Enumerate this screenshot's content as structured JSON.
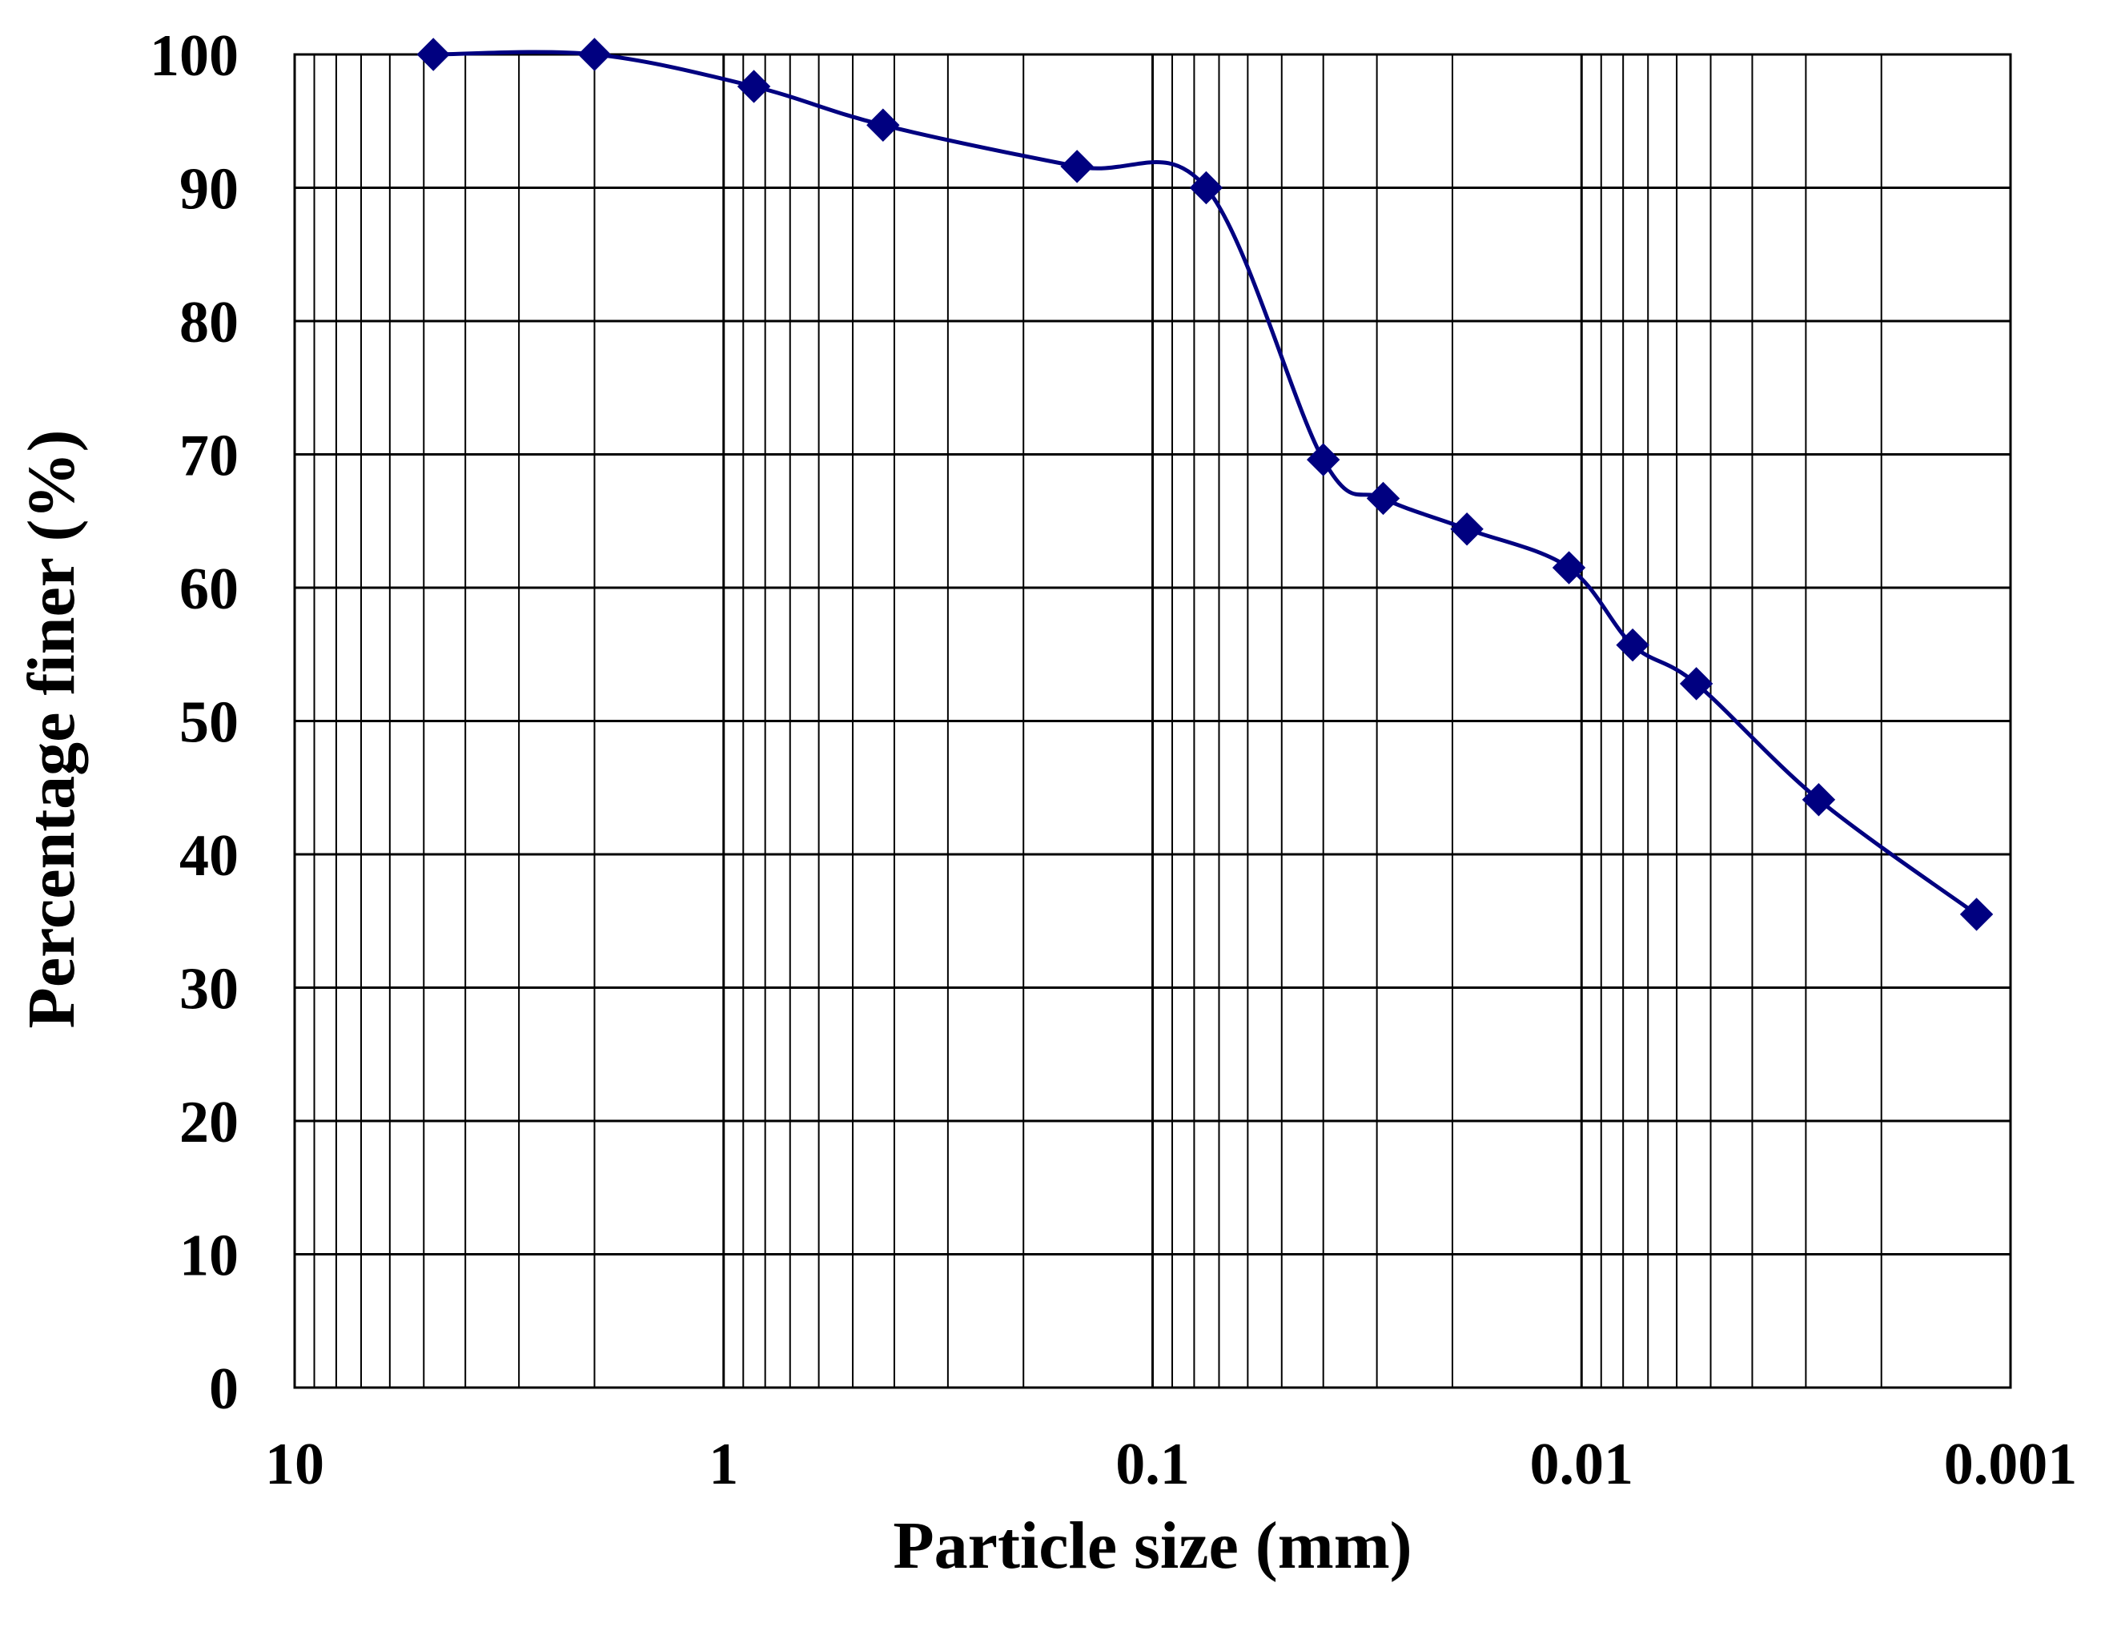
{
  "chart_data": {
    "type": "line",
    "xlabel": "Particle size (mm)",
    "ylabel": "Percentage finer (%)",
    "x_scale": "log",
    "x_reversed": true,
    "xlim": [
      10,
      0.001
    ],
    "ylim": [
      0,
      100
    ],
    "x_ticks": [
      {
        "value": 10,
        "label": "10"
      },
      {
        "value": 1,
        "label": "1"
      },
      {
        "value": 0.1,
        "label": "0.1"
      },
      {
        "value": 0.01,
        "label": "0.01"
      },
      {
        "value": 0.001,
        "label": "0.001"
      }
    ],
    "y_ticks": [
      {
        "value": 0,
        "label": "0"
      },
      {
        "value": 10,
        "label": "10"
      },
      {
        "value": 20,
        "label": "20"
      },
      {
        "value": 30,
        "label": "30"
      },
      {
        "value": 40,
        "label": "40"
      },
      {
        "value": 50,
        "label": "50"
      },
      {
        "value": 60,
        "label": "60"
      },
      {
        "value": 70,
        "label": "70"
      },
      {
        "value": 80,
        "label": "80"
      },
      {
        "value": 90,
        "label": "90"
      },
      {
        "value": 100,
        "label": "100"
      }
    ],
    "grid": true,
    "series": [
      {
        "color": "#000080",
        "marker": "diamond",
        "smooth": true,
        "points": [
          {
            "x": 4.75,
            "y": 100
          },
          {
            "x": 2.0,
            "y": 100
          },
          {
            "x": 0.85,
            "y": 97.6
          },
          {
            "x": 0.425,
            "y": 94.7
          },
          {
            "x": 0.15,
            "y": 91.6
          },
          {
            "x": 0.075,
            "y": 90.0
          },
          {
            "x": 0.04,
            "y": 69.6
          },
          {
            "x": 0.029,
            "y": 66.7
          },
          {
            "x": 0.0185,
            "y": 64.4
          },
          {
            "x": 0.0107,
            "y": 61.5
          },
          {
            "x": 0.0076,
            "y": 55.7
          },
          {
            "x": 0.0054,
            "y": 52.8
          },
          {
            "x": 0.0028,
            "y": 44.1
          },
          {
            "x": 0.0012,
            "y": 35.5
          }
        ]
      }
    ]
  }
}
